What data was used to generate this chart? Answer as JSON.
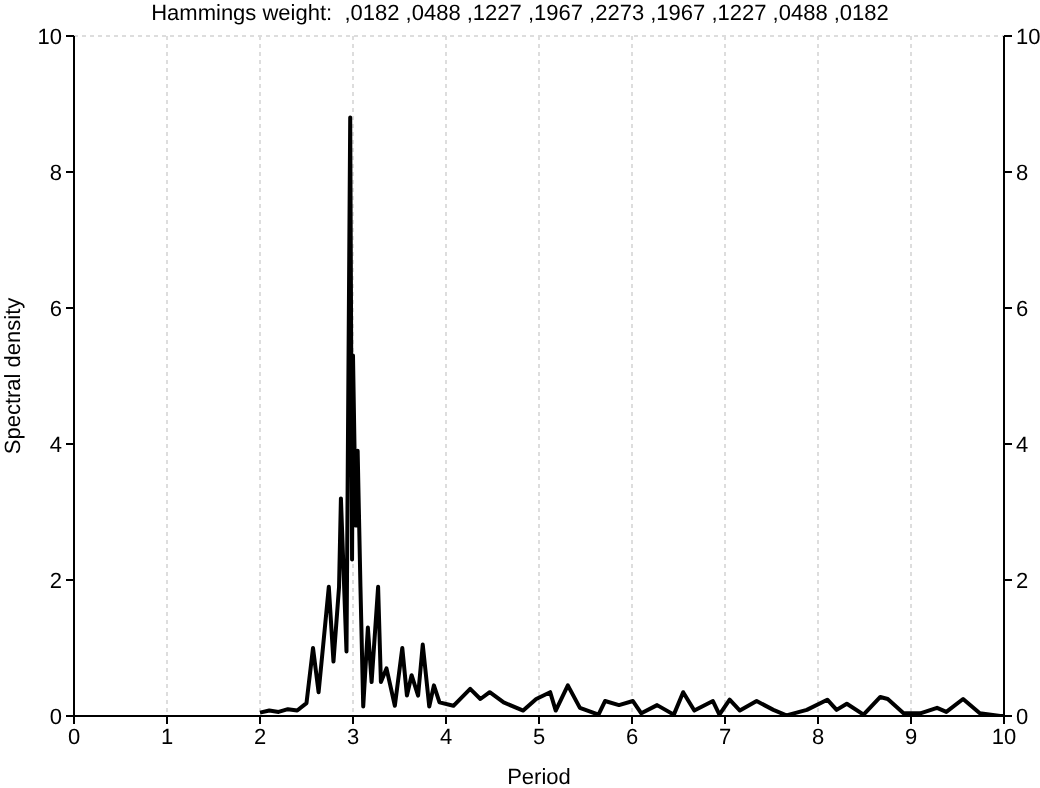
{
  "chart_data": {
    "type": "line",
    "title": "Hammings weight:  ,0182 ,0488 ,1227 ,1967 ,2273 ,1967 ,1227 ,0488 ,0182",
    "xlabel": "Period",
    "ylabel": "Spectral density",
    "xlim": [
      0,
      10
    ],
    "xticks": [
      0,
      1,
      2,
      3,
      4,
      5,
      6,
      7,
      8,
      9,
      10
    ],
    "ylim": [
      0,
      10
    ],
    "yticks": [
      0,
      2,
      4,
      6,
      8,
      10
    ],
    "y2lim": [
      0,
      10
    ],
    "y2ticks": [
      0,
      2,
      4,
      6,
      8,
      10
    ],
    "grid": true,
    "marker": "none",
    "line_style": "solid",
    "series": [
      {
        "color": "#000000",
        "x": [
          2.0,
          2.1,
          2.2,
          2.3,
          2.4,
          2.5,
          2.57,
          2.63,
          2.68,
          2.74,
          2.79,
          2.85,
          2.87,
          2.93,
          2.97,
          2.99,
          3.0,
          3.03,
          3.05,
          3.08,
          3.11,
          3.16,
          3.2,
          3.27,
          3.3,
          3.36,
          3.45,
          3.53,
          3.58,
          3.63,
          3.7,
          3.75,
          3.82,
          3.87,
          3.93,
          4.08,
          4.26,
          4.37,
          4.47,
          4.62,
          4.83,
          4.97,
          5.12,
          5.18,
          5.31,
          5.44,
          5.64,
          5.71,
          5.86,
          6.01,
          6.1,
          6.27,
          6.45,
          6.55,
          6.67,
          6.87,
          6.94,
          7.05,
          7.16,
          7.34,
          7.52,
          7.66,
          7.88,
          8.1,
          8.2,
          8.31,
          8.49,
          8.67,
          8.75,
          8.92,
          9.1,
          9.28,
          9.38,
          9.56,
          9.74,
          9.96,
          10.0
        ],
        "values": [
          0.05,
          0.08,
          0.06,
          0.1,
          0.08,
          0.19,
          1.0,
          0.35,
          1.05,
          1.9,
          0.8,
          1.9,
          3.2,
          0.95,
          8.8,
          2.3,
          5.3,
          2.8,
          3.9,
          1.9,
          0.14,
          1.3,
          0.5,
          1.9,
          0.5,
          0.7,
          0.15,
          1.0,
          0.3,
          0.6,
          0.3,
          1.05,
          0.14,
          0.45,
          0.2,
          0.15,
          0.4,
          0.25,
          0.35,
          0.2,
          0.08,
          0.25,
          0.35,
          0.08,
          0.45,
          0.12,
          0.02,
          0.22,
          0.16,
          0.22,
          0.04,
          0.16,
          0.02,
          0.35,
          0.08,
          0.22,
          0.02,
          0.24,
          0.08,
          0.22,
          0.09,
          0.01,
          0.09,
          0.24,
          0.09,
          0.18,
          0.02,
          0.28,
          0.25,
          0.04,
          0.04,
          0.12,
          0.06,
          0.25,
          0.04,
          0,
          0
        ]
      }
    ]
  }
}
